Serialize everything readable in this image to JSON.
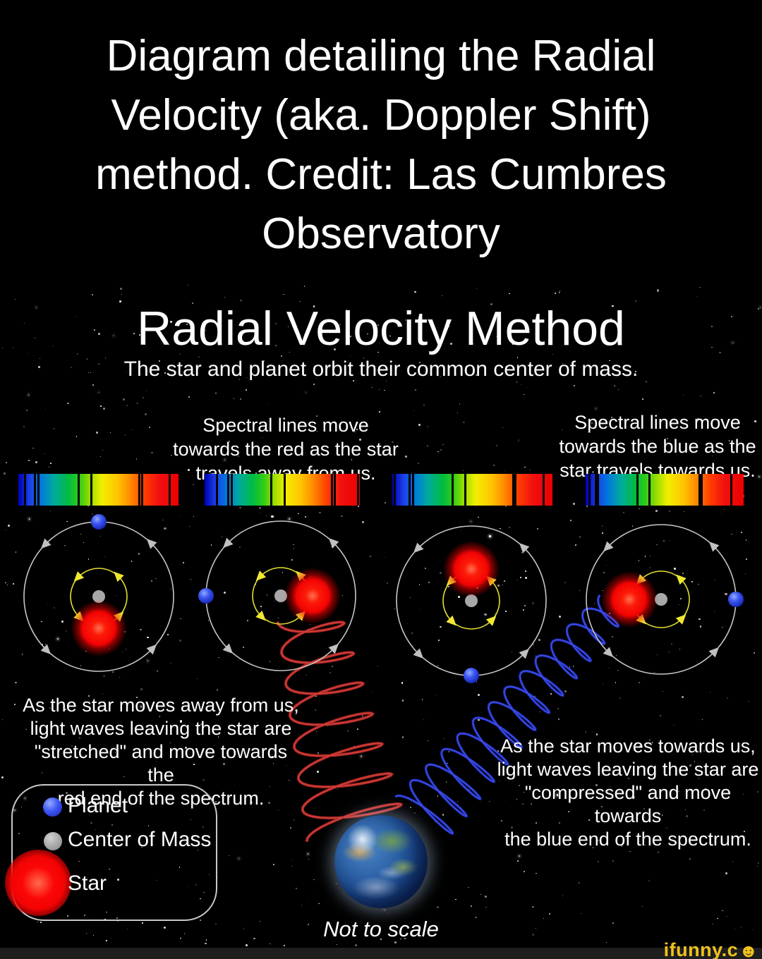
{
  "header": {
    "title": "Diagram detailing the Radial\nVelocity (aka. Doppler Shift)\nmethod. Credit: Las Cumbres\nObservatory"
  },
  "diagram": {
    "title": "Radial Velocity Method",
    "subtitle": "The star and planet orbit their common center of mass.",
    "caption_redshift": "Spectral lines move\ntowards the red as the star\ntravels away from us.",
    "caption_blueshift": "Spectral lines move\ntowards the blue as the\nstar travels towards us.",
    "explanation_away": "As the star moves away from us,\nlight waves leaving the star are\n\"stretched\" and move towards the\nred end of the spectrum.",
    "explanation_towards": "As the star moves towards us,\nlight waves leaving the star are\n\"compressed\" and move towards\nthe blue end of the spectrum.",
    "scale_note": "Not to scale"
  },
  "spectra": [
    {
      "name": "spectrum-at-rest-1",
      "absorption_lines_pct": [
        4,
        10.5,
        12.5,
        37.5,
        45.5,
        75.5,
        77.5,
        94.5
      ]
    },
    {
      "name": "spectrum-redshifted",
      "absorption_lines_pct": [
        8,
        15,
        17.3,
        43,
        51.4,
        82,
        84,
        99
      ]
    },
    {
      "name": "spectrum-at-rest-2",
      "absorption_lines_pct": [
        1.5,
        11,
        13,
        37.5,
        45.5,
        75.5,
        77,
        94.5
      ]
    },
    {
      "name": "spectrum-blueshifted",
      "absorption_lines_pct": [
        2.5,
        6.3,
        8,
        33,
        40.5,
        72,
        73.5,
        92
      ]
    }
  ],
  "orbit_frames": [
    {
      "star_position": "bottom",
      "planet_position": "top"
    },
    {
      "star_position": "right",
      "planet_position": "left",
      "emits": "redshifted-light-wave"
    },
    {
      "star_position": "top",
      "planet_position": "bottom"
    },
    {
      "star_position": "left",
      "planet_position": "right",
      "emits": "blueshifted-light-wave"
    }
  ],
  "legend": {
    "items": [
      {
        "label": "Planet",
        "color": "#2a46e8"
      },
      {
        "label": "Center of Mass",
        "color": "#999999"
      },
      {
        "label": "Star",
        "color": "#fb0505"
      }
    ]
  },
  "colors": {
    "background": "#000000",
    "text": "#ffffff",
    "planet_orbit_path": "#c6c6c6",
    "star_orbit_path": "#e4de30",
    "redshift_wave": "#b62626",
    "blueshift_wave": "#2433c9",
    "watermark_yellow": "#eec11c",
    "bottom_bar": "#1e1e1e"
  },
  "watermark": {
    "text": "ifunny.c",
    "icon": "smiley-face-icon",
    "icon_glyph": "☻"
  }
}
